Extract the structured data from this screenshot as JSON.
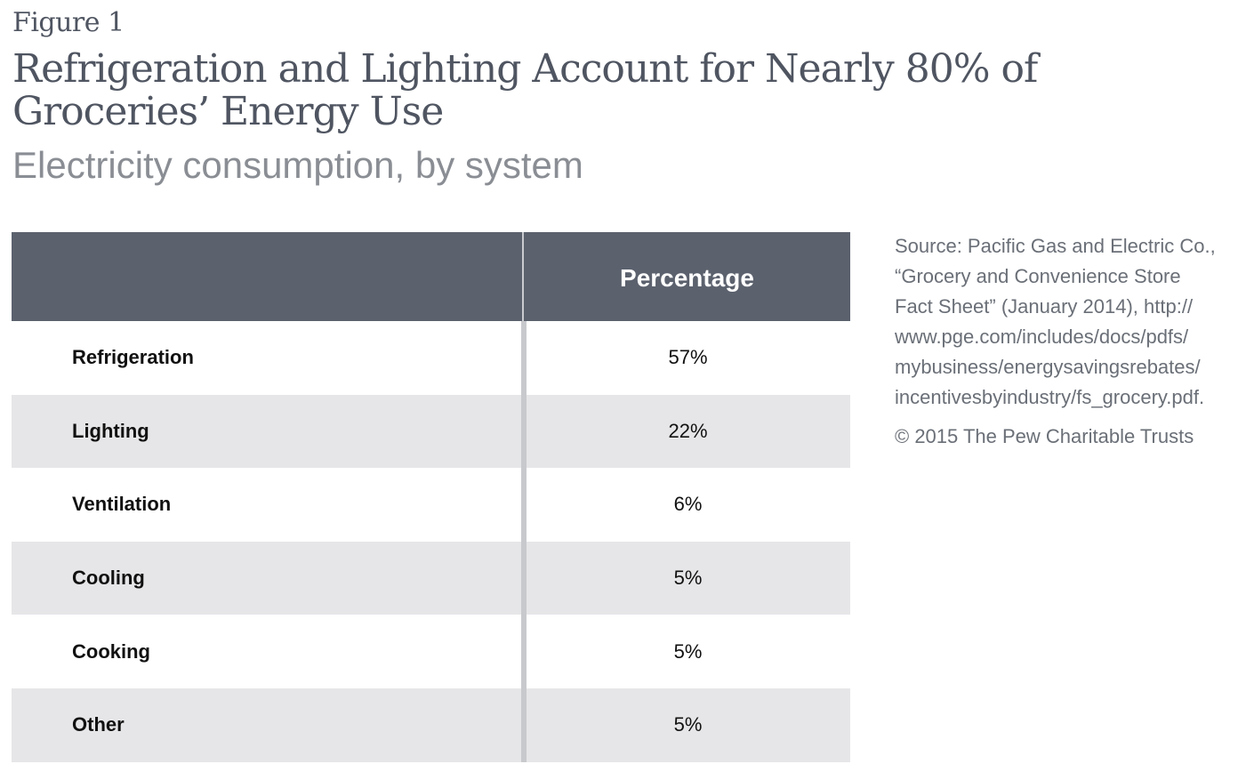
{
  "figure_label": "Figure 1",
  "chart_data": {
    "type": "table",
    "title": "Refrigeration and Lighting Account for Nearly 80% of Groceries’ Energy Use",
    "subtitle": "Electricity consumption, by system",
    "columns": [
      "",
      "Percentage"
    ],
    "rows": [
      {
        "label": "Refrigeration",
        "value": "57%"
      },
      {
        "label": "Lighting",
        "value": "22%"
      },
      {
        "label": "Ventilation",
        "value": "6%"
      },
      {
        "label": "Cooling",
        "value": "5%"
      },
      {
        "label": "Cooking",
        "value": "5%"
      },
      {
        "label": "Other",
        "value": "5%"
      }
    ]
  },
  "source_lines": [
    "Source: Pacific Gas and Electric Co.,",
    "“Grocery and Convenience Store",
    "Fact Sheet” (January 2014), http://",
    "www.pge.com/includes/docs/pdfs/",
    "mybusiness/energysavingsrebates/",
    "incentivesbyindustry/fs_grocery.pdf."
  ],
  "copyright": "© 2015 The Pew Charitable Trusts",
  "colors": {
    "header_bg": "#5b616d",
    "row_shade": "#e6e6e8",
    "divider": "#c8c9cd",
    "title_text": "#4f5561",
    "subtitle_text": "#8a8e94"
  }
}
